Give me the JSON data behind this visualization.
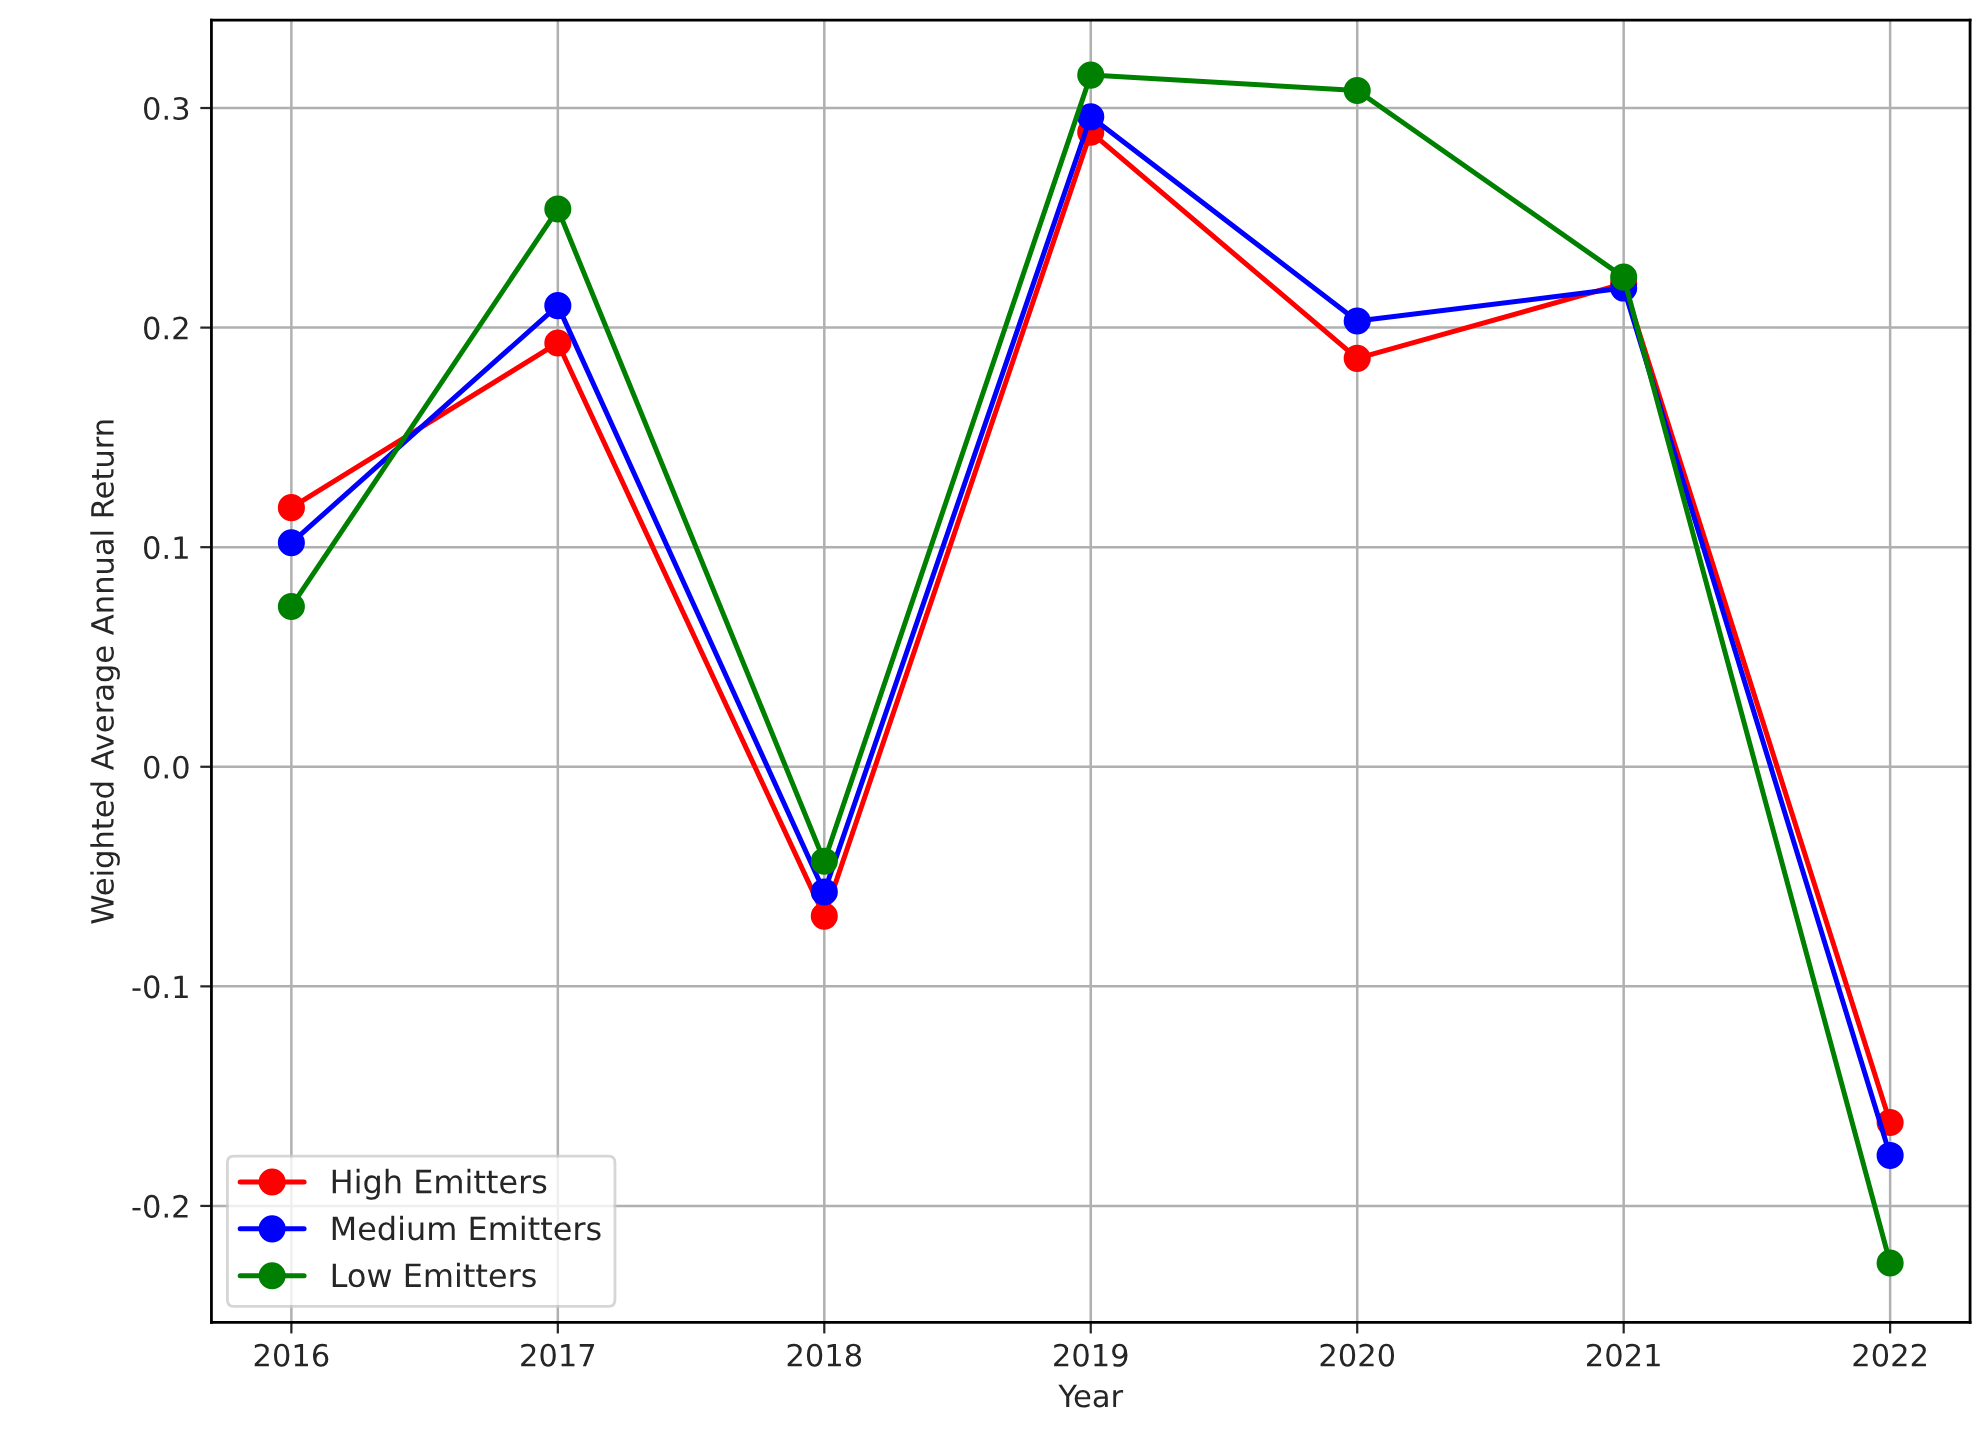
{
  "chart_data": {
    "type": "line",
    "xlabel": "Year",
    "ylabel": "Weighted Average Annual Return",
    "x": [
      2016,
      2017,
      2018,
      2019,
      2020,
      2021,
      2022
    ],
    "series": [
      {
        "name": "High Emitters",
        "color": "#ff0000",
        "values": [
          0.118,
          0.193,
          -0.068,
          0.289,
          0.186,
          0.22,
          -0.162
        ]
      },
      {
        "name": "Medium Emitters",
        "color": "#0000ff",
        "values": [
          0.102,
          0.21,
          -0.057,
          0.296,
          0.203,
          0.218,
          -0.177
        ]
      },
      {
        "name": "Low Emitters",
        "color": "#008000",
        "values": [
          0.073,
          0.254,
          -0.043,
          0.315,
          0.308,
          0.223,
          -0.226
        ]
      }
    ],
    "xlim": [
      2015.7,
      2022.3
    ],
    "xticks": [
      2016,
      2017,
      2018,
      2019,
      2020,
      2021,
      2022
    ],
    "ylim": [
      -0.253,
      0.34
    ],
    "yticks": [
      -0.2,
      -0.1,
      {
        "value": 0,
        "label": "0.0"
      },
      0.1,
      0.2,
      0.3
    ],
    "grid": true,
    "legend": "lower left",
    "marker": "circle",
    "line_style": "solid"
  }
}
